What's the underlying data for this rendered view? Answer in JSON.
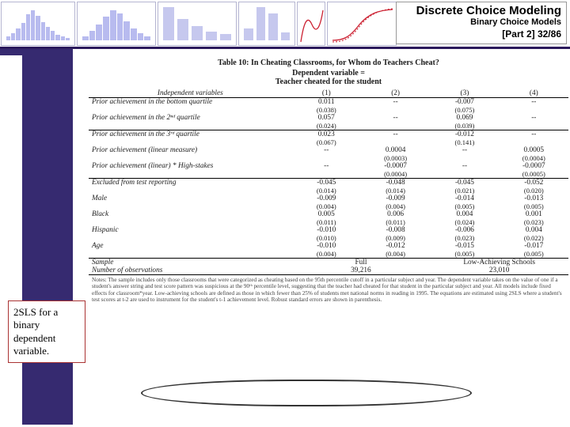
{
  "header": {
    "title_main": "Discrete Choice Modeling",
    "title_sub": "Binary Choice Models",
    "title_part": "[Part 2]   32/86",
    "minicharts": {
      "c1_bars": [
        8,
        14,
        24,
        36,
        54,
        62,
        50,
        38,
        28,
        20,
        12,
        8,
        5
      ],
      "c2_bars": [
        8,
        18,
        30,
        44,
        56,
        50,
        36,
        22,
        14,
        8
      ],
      "c3_bars": [
        52,
        34,
        22,
        14,
        10
      ],
      "c4_bars": [
        18,
        50,
        40,
        12
      ],
      "c6_curve_label": "S-curve"
    }
  },
  "notebox": {
    "text": "2SLS for a binary dependent variable."
  },
  "table": {
    "title": "Table 10: In Cheating Classrooms, for Whom do Teachers Cheat?",
    "dep_label": "Dependent variable =",
    "dep_value": "Teacher cheated for the student",
    "head_var": "Independent variables",
    "cols": [
      "(1)",
      "(2)",
      "(3)",
      "(4)"
    ],
    "rows": [
      {
        "label": "Prior achievement in the bottom quartile",
        "v": [
          "0.011",
          "--",
          "-0.007",
          "--"
        ],
        "se": [
          "(0.038)",
          "",
          "(0.075)",
          ""
        ]
      },
      {
        "label": "Prior achievement in the 2ⁿᵈ quartile",
        "v": [
          "0.057",
          "--",
          "0.069",
          "--"
        ],
        "se": [
          "(0.024)",
          "",
          "(0.039)",
          ""
        ],
        "divider": true
      },
      {
        "label": "Prior achievement in the 3ʳᵈ quartile",
        "v": [
          "0.023",
          "--",
          "-0.012",
          "--"
        ],
        "se": [
          "(0.067)",
          "",
          "(0.141)",
          ""
        ]
      },
      {
        "label": "Prior achievement (linear measure)",
        "v": [
          "--",
          "0.0004",
          "--",
          "0.0005"
        ],
        "se": [
          "",
          "(0.0003)",
          "",
          "(0.0004)"
        ]
      },
      {
        "label": "Prior achievement (linear) * High-stakes",
        "v": [
          "--",
          "-0.0007",
          "--",
          "-0.0007"
        ],
        "se": [
          "",
          "(0.0004)",
          "",
          "(0.0005)"
        ],
        "divider": true
      },
      {
        "label": "Excluded from test reporting",
        "v": [
          "-0.045",
          "-0.048",
          "-0.045",
          "-0.052"
        ],
        "se": [
          "(0.014)",
          "(0.014)",
          "(0.021)",
          "(0.020)"
        ]
      },
      {
        "label": "Male",
        "v": [
          "-0.009",
          "-0.009",
          "-0.014",
          "-0.013"
        ],
        "se": [
          "(0.004)",
          "(0.004)",
          "(0.005)",
          "(0.005)"
        ]
      },
      {
        "label": "Black",
        "v": [
          "0.005",
          "0.006",
          "0.004",
          "0.001"
        ],
        "se": [
          "(0.011)",
          "(0.011)",
          "(0.024)",
          "(0.023)"
        ]
      },
      {
        "label": "Hispanic",
        "v": [
          "-0.010",
          "-0.008",
          "-0.006",
          "0.004"
        ],
        "se": [
          "(0.010)",
          "(0.009)",
          "(0.023)",
          "(0.022)"
        ]
      },
      {
        "label": "Age",
        "v": [
          "-0.010",
          "-0.012",
          "-0.015",
          "-0.017"
        ],
        "se": [
          "(0.004)",
          "(0.004)",
          "(0.005)",
          "(0.005)"
        ],
        "divider": true
      }
    ],
    "sample_row": {
      "label": "Sample",
      "v": [
        "Full",
        "",
        "Low-Achieving Schools",
        ""
      ]
    },
    "nobs_row": {
      "label": "Number of observations",
      "v": [
        "39,216",
        "",
        "23,010",
        ""
      ]
    },
    "notes": "Notes: The sample includes only those classrooms that were categorized as cheating based on the 95th percentile cutoff in a particular subject and year. The dependent variable takes on the value of one if a student's answer string and test score pattern was suspicious at the 90ᵗʰ percentile level, suggesting that the teacher had cheated for that student in the particular subject and year. All models include fixed effects for classroom*year. Low-achieving schools are defined as those in which fewer than 25% of students met national norms in reading in 1995. The equations are estimated using 2SLS where a student's test scores at t-2 are used to instrument for the student's t-1 achievement level. Robust standard errors are shown in parenthesis."
  }
}
